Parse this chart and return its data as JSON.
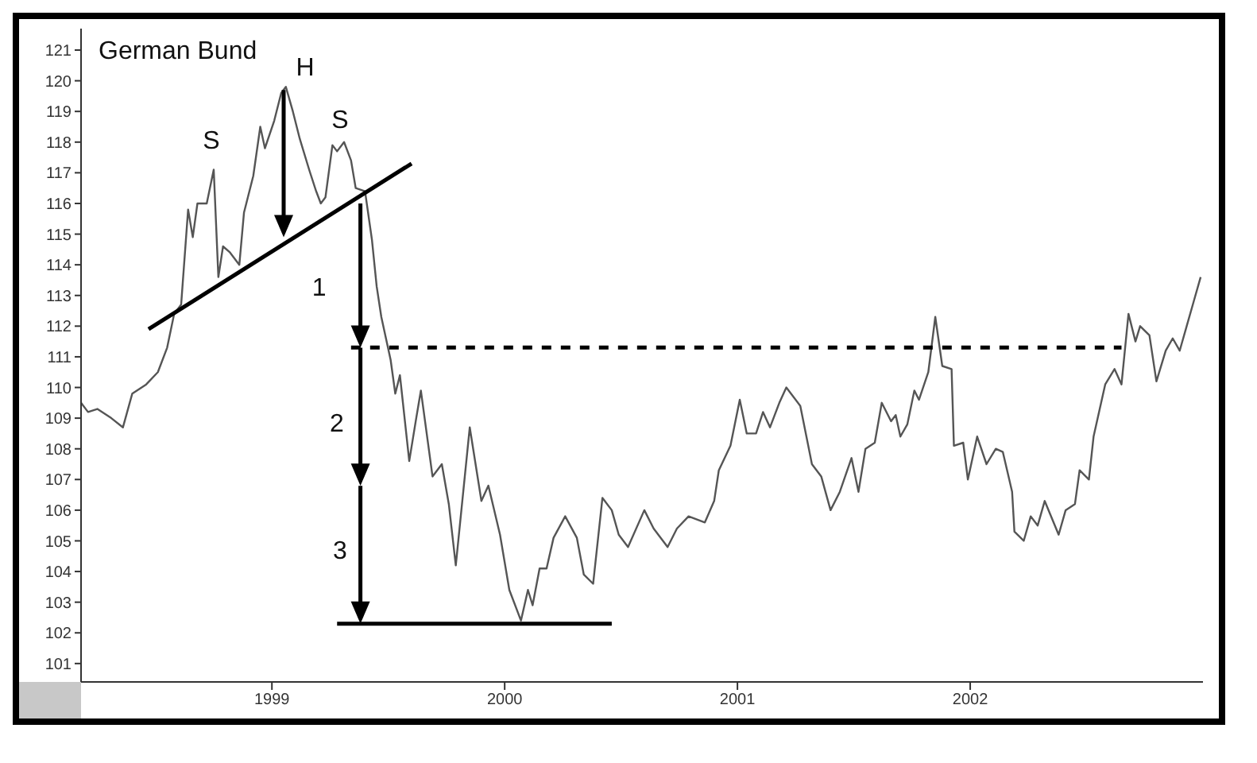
{
  "chart_data": {
    "type": "line",
    "title": "German Bund",
    "xlim": [
      1998.18,
      2003.0
    ],
    "xticks": [
      1999,
      2000,
      2001,
      2002
    ],
    "ylim": [
      100.4,
      121.7
    ],
    "yticks": [
      101,
      102,
      103,
      104,
      105,
      106,
      107,
      108,
      109,
      110,
      111,
      112,
      113,
      114,
      115,
      116,
      117,
      118,
      119,
      120,
      121
    ],
    "series": [
      {
        "color": "#555555",
        "marker": "none",
        "line_style": "solid",
        "x": [
          1998.18,
          1998.21,
          1998.25,
          1998.31,
          1998.36,
          1998.4,
          1998.46,
          1998.51,
          1998.55,
          1998.58,
          1998.61,
          1998.64,
          1998.66,
          1998.68,
          1998.72,
          1998.75,
          1998.77,
          1998.79,
          1998.82,
          1998.86,
          1998.88,
          1998.92,
          1998.95,
          1998.97,
          1999.01,
          1999.04,
          1999.06,
          1999.09,
          1999.12,
          1999.16,
          1999.19,
          1999.21,
          1999.23,
          1999.26,
          1999.28,
          1999.31,
          1999.34,
          1999.36,
          1999.4,
          1999.43,
          1999.45,
          1999.47,
          1999.51,
          1999.53,
          1999.55,
          1999.59,
          1999.62,
          1999.64,
          1999.69,
          1999.73,
          1999.76,
          1999.79,
          1999.85,
          1999.9,
          1999.93,
          1999.98,
          2000.02,
          2000.07,
          2000.1,
          2000.12,
          2000.15,
          2000.18,
          2000.21,
          2000.26,
          2000.31,
          2000.34,
          2000.38,
          2000.42,
          2000.46,
          2000.49,
          2000.53,
          2000.6,
          2000.64,
          2000.7,
          2000.74,
          2000.79,
          2000.86,
          2000.9,
          2000.92,
          2000.97,
          2001.01,
          2001.04,
          2001.08,
          2001.11,
          2001.14,
          2001.18,
          2001.21,
          2001.27,
          2001.32,
          2001.36,
          2001.4,
          2001.44,
          2001.49,
          2001.52,
          2001.55,
          2001.59,
          2001.62,
          2001.66,
          2001.68,
          2001.7,
          2001.73,
          2001.76,
          2001.78,
          2001.82,
          2001.85,
          2001.88,
          2001.92,
          2001.93,
          2001.97,
          2001.99,
          2002.03,
          2002.07,
          2002.11,
          2002.14,
          2002.18,
          2002.19,
          2002.23,
          2002.26,
          2002.29,
          2002.32,
          2002.38,
          2002.41,
          2002.45,
          2002.47,
          2002.51,
          2002.53,
          2002.58,
          2002.62,
          2002.65,
          2002.68,
          2002.71,
          2002.73,
          2002.77,
          2002.8,
          2002.84,
          2002.87,
          2002.9,
          2002.93,
          2002.96,
          2002.99
        ],
        "values": [
          109.5,
          109.2,
          109.3,
          109.0,
          108.7,
          109.8,
          110.1,
          110.5,
          111.3,
          112.4,
          112.7,
          115.8,
          114.9,
          116.0,
          116.0,
          117.1,
          113.6,
          114.6,
          114.4,
          114.0,
          115.7,
          116.9,
          118.5,
          117.8,
          118.7,
          119.6,
          119.8,
          119.0,
          118.1,
          117.1,
          116.4,
          116.0,
          116.2,
          117.9,
          117.7,
          118.0,
          117.4,
          116.5,
          116.4,
          114.8,
          113.3,
          112.3,
          110.9,
          109.8,
          110.4,
          107.6,
          109.0,
          109.9,
          107.1,
          107.5,
          106.2,
          104.2,
          108.7,
          106.3,
          106.8,
          105.2,
          103.4,
          102.4,
          103.4,
          102.9,
          104.1,
          104.1,
          105.1,
          105.8,
          105.1,
          103.9,
          103.6,
          106.4,
          106.0,
          105.2,
          104.8,
          106.0,
          105.4,
          104.8,
          105.4,
          105.8,
          105.6,
          106.3,
          107.3,
          108.1,
          109.6,
          108.5,
          108.5,
          109.2,
          108.7,
          109.5,
          110.0,
          109.4,
          107.5,
          107.1,
          106.0,
          106.6,
          107.7,
          106.6,
          108.0,
          108.2,
          109.5,
          108.9,
          109.1,
          108.4,
          108.8,
          109.9,
          109.6,
          110.5,
          112.3,
          110.7,
          110.6,
          108.1,
          108.2,
          107.0,
          108.4,
          107.5,
          108.0,
          107.9,
          106.6,
          105.3,
          105.0,
          105.8,
          105.5,
          106.3,
          105.2,
          106.0,
          106.2,
          107.3,
          107.0,
          108.4,
          110.1,
          110.6,
          110.1,
          112.4,
          111.5,
          112.0,
          111.7,
          110.2,
          111.2,
          111.6,
          111.2,
          112.0,
          112.8,
          113.6
        ]
      },
      {
        "color": "#000000",
        "marker": "none",
        "line_style": "solid",
        "x": [
          1998.47,
          1999.6
        ],
        "values": [
          111.9,
          117.3
        ]
      },
      {
        "color": "#000000",
        "marker": "none",
        "line_style": "dashed",
        "x": [
          1999.34,
          2002.65
        ],
        "values": [
          111.3,
          111.3
        ]
      },
      {
        "color": "#000000",
        "marker": "none",
        "line_style": "solid",
        "x": [
          1999.28,
          2000.46
        ],
        "values": [
          102.3,
          102.3
        ]
      }
    ],
    "annotations": [
      "H",
      "S",
      "S",
      {
        "text": "1",
        "x": 1999.38,
        "y": 111.3
      },
      "2",
      "3"
    ]
  }
}
